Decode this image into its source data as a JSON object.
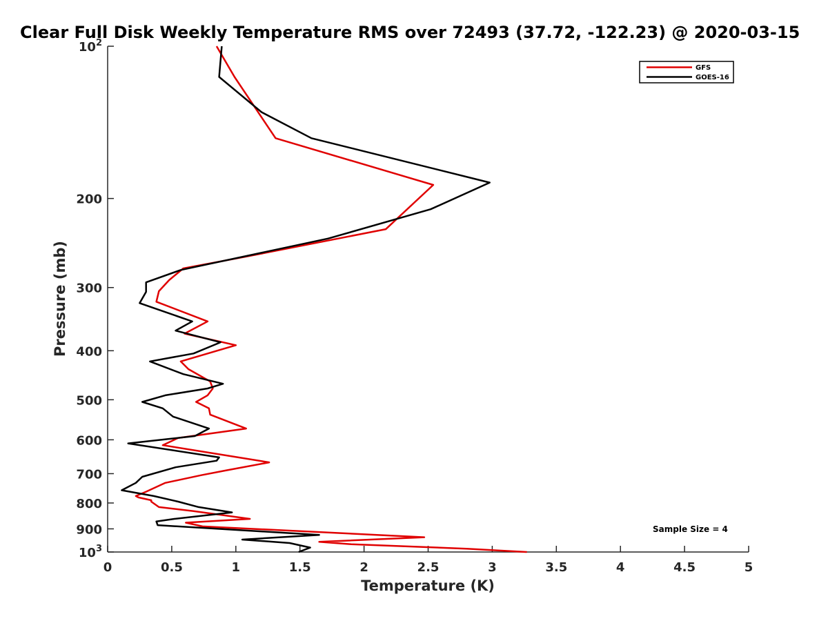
{
  "chart_data": {
    "type": "line",
    "title": "Clear Full Disk Weekly Temperature RMS over 72493 (37.72, -122.23) @ 2020-03-15",
    "xlabel": "Temperature (K)",
    "ylabel": "Pressure (mb)",
    "xlim": [
      0,
      5
    ],
    "ylim": [
      100,
      1000
    ],
    "y_scale": "log",
    "y_reversed": true,
    "x_ticks": [
      "0",
      "0.5",
      "1",
      "1.5",
      "2",
      "2.5",
      "3",
      "3.5",
      "4",
      "4.5",
      "5"
    ],
    "y_ticks": [
      {
        "value": 100,
        "base": "10",
        "exp": "2"
      },
      {
        "value": 200,
        "label": "200"
      },
      {
        "value": 300,
        "label": "300"
      },
      {
        "value": 400,
        "label": "400"
      },
      {
        "value": 500,
        "label": "500"
      },
      {
        "value": 600,
        "label": "600"
      },
      {
        "value": 700,
        "label": "700"
      },
      {
        "value": 800,
        "label": "800"
      },
      {
        "value": 900,
        "label": "900"
      },
      {
        "value": 1000,
        "base": "10",
        "exp": "3"
      }
    ],
    "grid": false,
    "legend_position": "top-right",
    "annotation": "Sample Size = 4",
    "series": [
      {
        "name": "GFS",
        "color": "#e00000",
        "points": [
          [
            0.85,
            100
          ],
          [
            0.99,
            115
          ],
          [
            1.31,
            152
          ],
          [
            2.54,
            188
          ],
          [
            2.17,
            230
          ],
          [
            1.1,
            260
          ],
          [
            0.59,
            275
          ],
          [
            0.48,
            290
          ],
          [
            0.4,
            305
          ],
          [
            0.38,
            320
          ],
          [
            0.78,
            350
          ],
          [
            0.6,
            370
          ],
          [
            1.0,
            390
          ],
          [
            0.57,
            420
          ],
          [
            0.63,
            435
          ],
          [
            0.8,
            460
          ],
          [
            0.82,
            475
          ],
          [
            0.78,
            490
          ],
          [
            0.69,
            505
          ],
          [
            0.79,
            520
          ],
          [
            0.8,
            535
          ],
          [
            1.08,
            570
          ],
          [
            0.55,
            595
          ],
          [
            0.43,
            615
          ],
          [
            1.02,
            650
          ],
          [
            1.26,
            665
          ],
          [
            0.92,
            690
          ],
          [
            0.73,
            705
          ],
          [
            0.45,
            730
          ],
          [
            0.3,
            760
          ],
          [
            0.22,
            775
          ],
          [
            0.24,
            780
          ],
          [
            0.34,
            790
          ],
          [
            0.34,
            795
          ],
          [
            0.4,
            815
          ],
          [
            0.67,
            830
          ],
          [
            1.11,
            860
          ],
          [
            0.61,
            875
          ],
          [
            0.74,
            890
          ],
          [
            2.47,
            935
          ],
          [
            1.65,
            955
          ],
          [
            1.9,
            965
          ],
          [
            2.8,
            985
          ],
          [
            3.27,
            1000
          ]
        ]
      },
      {
        "name": "GOES-16",
        "color": "#000000",
        "points": [
          [
            0.89,
            100
          ],
          [
            0.87,
            115
          ],
          [
            1.2,
            135
          ],
          [
            1.59,
            152
          ],
          [
            2.98,
            186
          ],
          [
            2.52,
            210
          ],
          [
            1.72,
            240
          ],
          [
            0.57,
            277
          ],
          [
            0.3,
            293
          ],
          [
            0.3,
            306
          ],
          [
            0.25,
            322
          ],
          [
            0.66,
            350
          ],
          [
            0.53,
            365
          ],
          [
            0.88,
            385
          ],
          [
            0.67,
            405
          ],
          [
            0.33,
            420
          ],
          [
            0.59,
            445
          ],
          [
            0.9,
            465
          ],
          [
            0.78,
            475
          ],
          [
            0.45,
            490
          ],
          [
            0.27,
            505
          ],
          [
            0.43,
            520
          ],
          [
            0.51,
            540
          ],
          [
            0.79,
            570
          ],
          [
            0.68,
            590
          ],
          [
            0.16,
            610
          ],
          [
            0.87,
            650
          ],
          [
            0.85,
            660
          ],
          [
            0.53,
            680
          ],
          [
            0.27,
            710
          ],
          [
            0.22,
            730
          ],
          [
            0.11,
            755
          ],
          [
            0.36,
            775
          ],
          [
            0.55,
            795
          ],
          [
            0.71,
            815
          ],
          [
            0.97,
            835
          ],
          [
            0.52,
            860
          ],
          [
            0.38,
            870
          ],
          [
            0.39,
            885
          ],
          [
            1.65,
            925
          ],
          [
            1.05,
            945
          ],
          [
            1.42,
            960
          ],
          [
            1.58,
            980
          ],
          [
            1.49,
            1000
          ]
        ]
      }
    ]
  }
}
